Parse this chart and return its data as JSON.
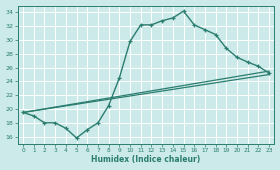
{
  "xlabel": "Humidex (Indice chaleur)",
  "background_color": "#cceaea",
  "grid_color": "#ffffff",
  "line_color": "#2a7d6f",
  "xlim": [
    -0.5,
    23.5
  ],
  "ylim": [
    15.0,
    35.0
  ],
  "xticks": [
    0,
    1,
    2,
    3,
    4,
    5,
    6,
    7,
    8,
    9,
    10,
    11,
    12,
    13,
    14,
    15,
    16,
    17,
    18,
    19,
    20,
    21,
    22,
    23
  ],
  "yticks": [
    16,
    18,
    20,
    22,
    24,
    26,
    28,
    30,
    32,
    34
  ],
  "curve1_x": [
    0,
    1,
    2,
    3,
    4,
    5,
    6,
    7,
    8,
    9,
    10,
    11,
    12,
    13,
    14,
    15,
    16,
    17,
    18,
    19,
    20,
    21,
    22,
    23
  ],
  "curve1_y": [
    19.5,
    19.0,
    18.0,
    18.0,
    17.2,
    15.8,
    17.0,
    18.0,
    20.5,
    24.5,
    29.8,
    32.2,
    32.2,
    32.8,
    33.2,
    34.2,
    32.2,
    31.5,
    30.8,
    28.8,
    27.5,
    26.8,
    26.2,
    25.2
  ],
  "curve2_x": [
    0,
    23
  ],
  "curve2_y": [
    19.5,
    25.5
  ],
  "curve3_x": [
    0,
    23
  ],
  "curve3_y": [
    19.5,
    25.0
  ]
}
